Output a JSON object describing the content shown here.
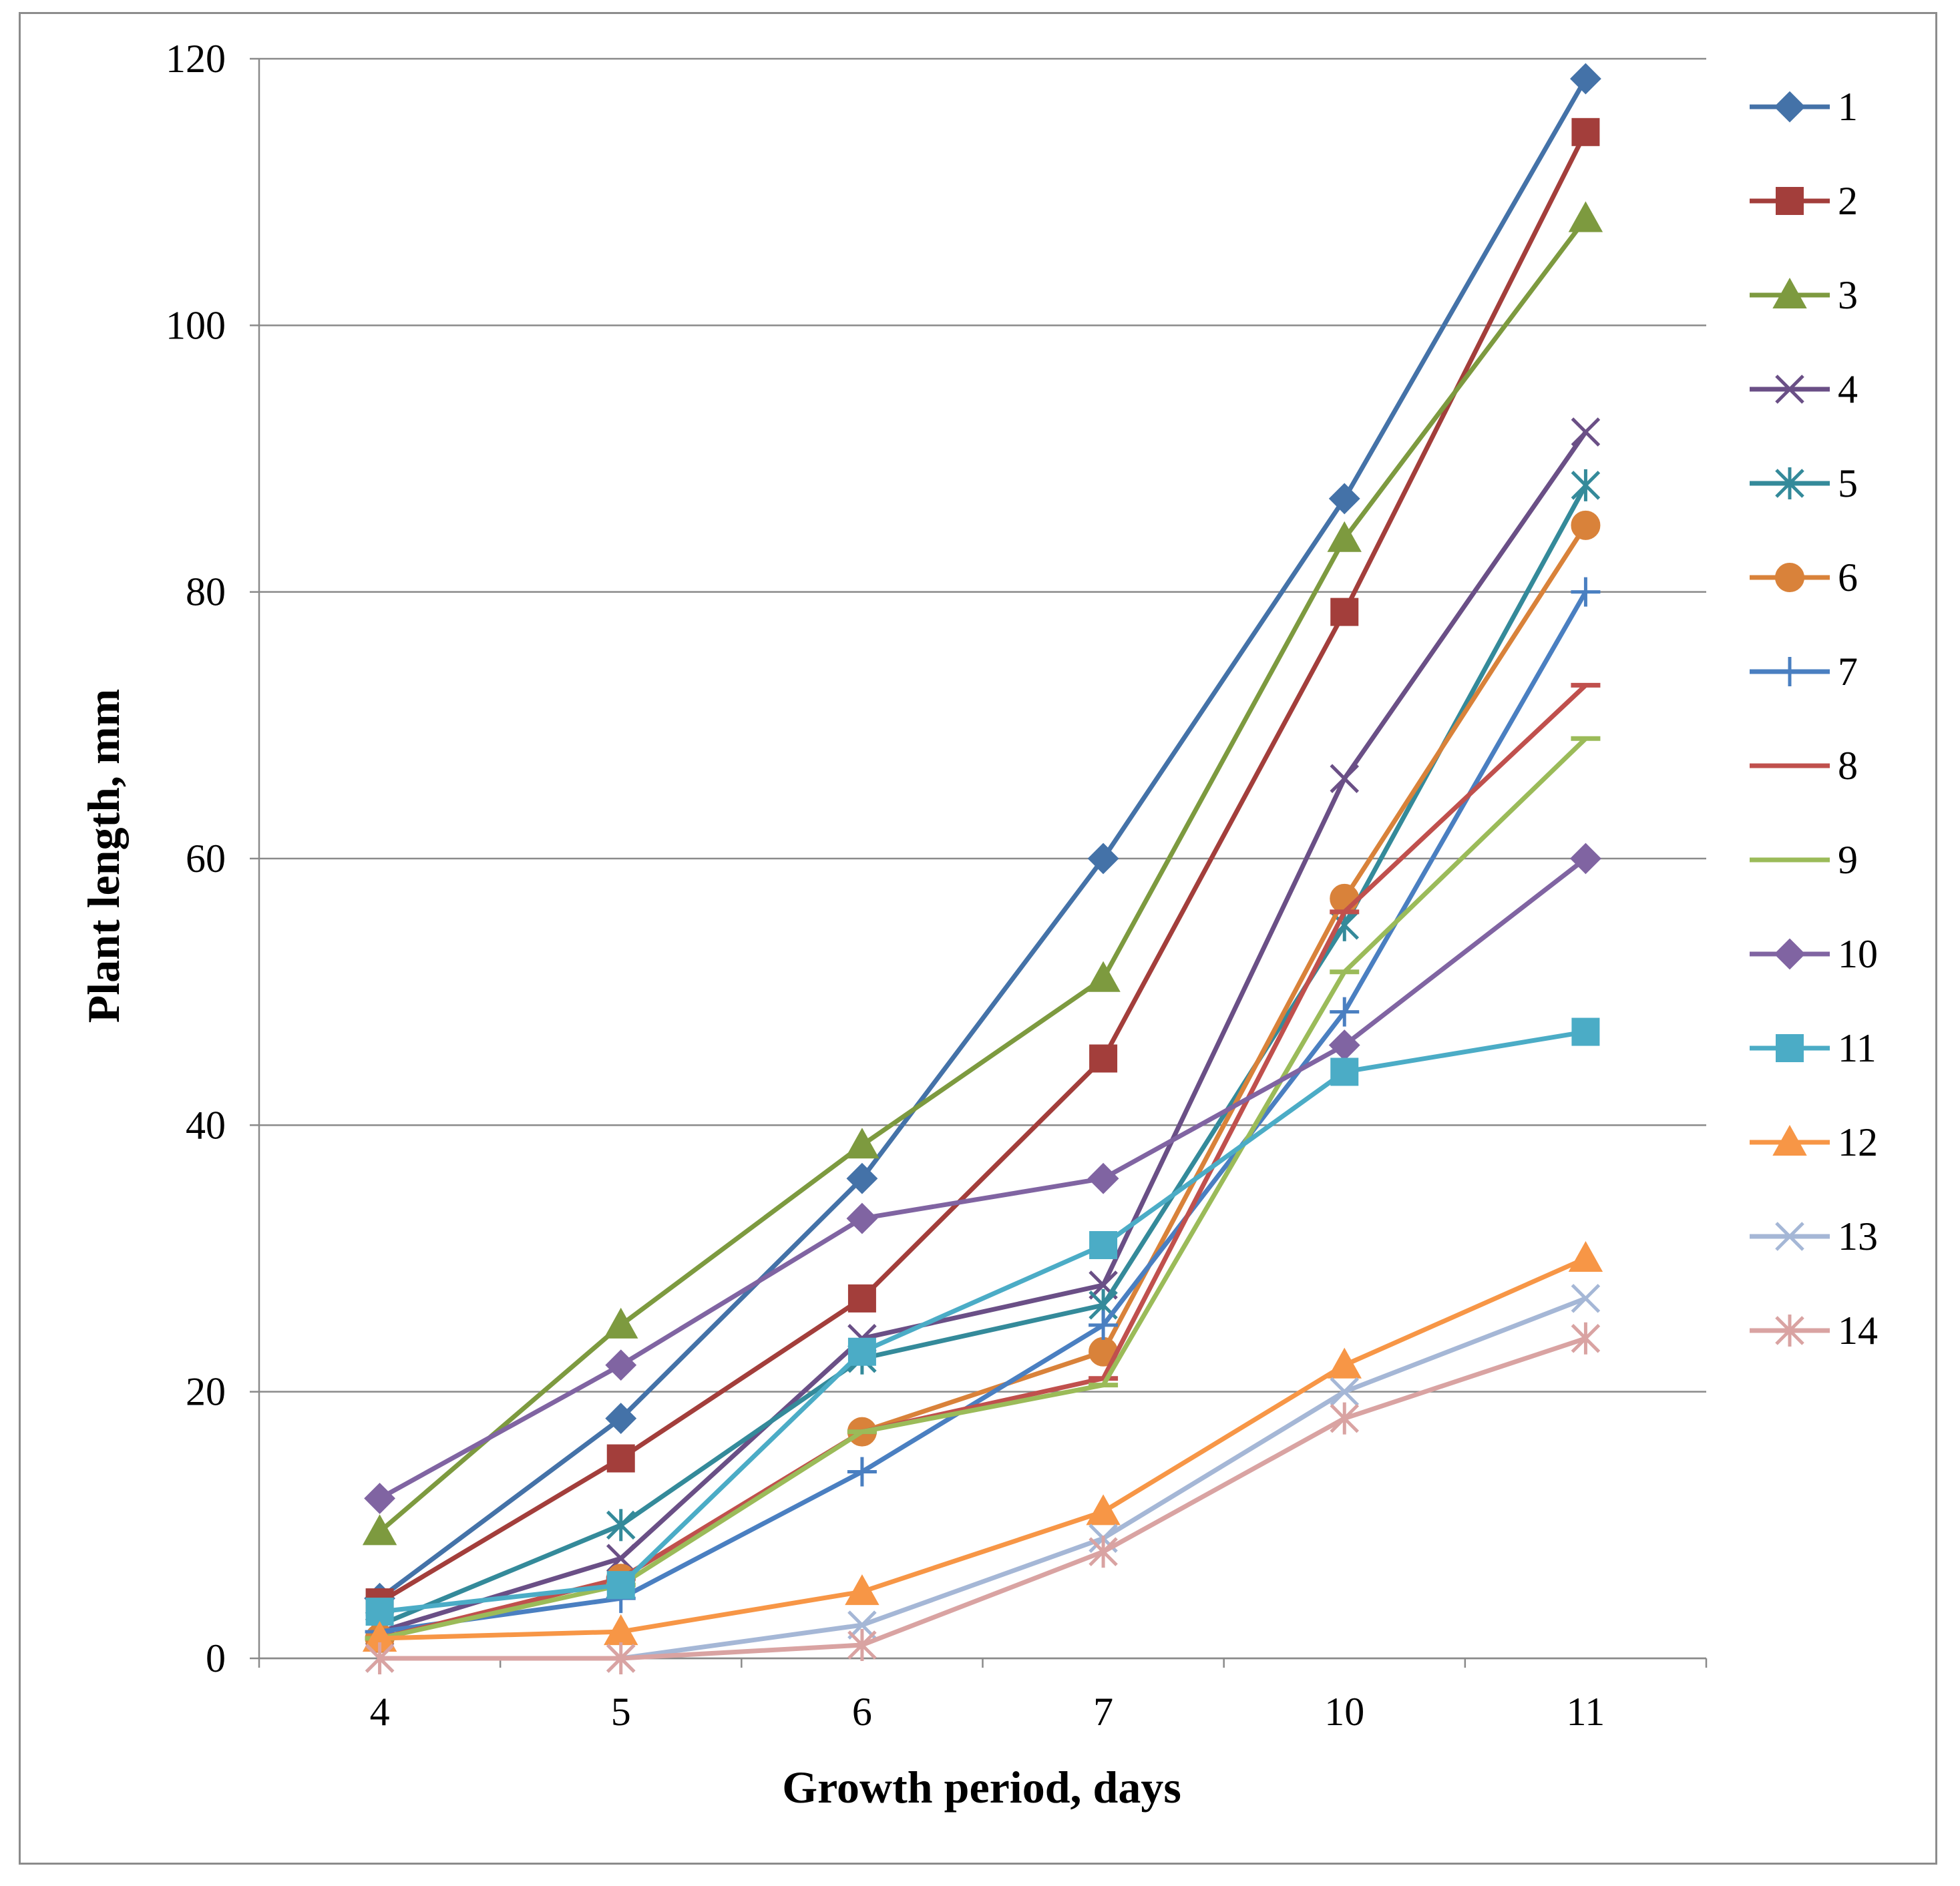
{
  "chart_data": {
    "type": "line",
    "title": "",
    "xlabel": "Growth period, days",
    "ylabel": "Plant length, mm",
    "categories": [
      "4",
      "5",
      "6",
      "7",
      "10",
      "11"
    ],
    "ylim": [
      0,
      120
    ],
    "yticks": [
      "0",
      "20",
      "40",
      "60",
      "80",
      "100",
      "120"
    ],
    "grid": "horizontal",
    "legend_position": "right",
    "series": [
      {
        "name": "1",
        "color": "#4472a8",
        "marker": "diamond",
        "values": [
          4.5,
          18,
          36,
          60,
          87,
          118.5
        ]
      },
      {
        "name": "2",
        "color": "#a33e3b",
        "marker": "square",
        "values": [
          4.2,
          15,
          27,
          45,
          78.5,
          114.5
        ]
      },
      {
        "name": "3",
        "color": "#7d9a3f",
        "marker": "triangle",
        "values": [
          9.5,
          25,
          38.5,
          51,
          84,
          108
        ]
      },
      {
        "name": "4",
        "color": "#6a4f86",
        "marker": "x",
        "values": [
          2,
          7.5,
          24,
          28,
          66,
          92
        ]
      },
      {
        "name": "5",
        "color": "#348a9a",
        "marker": "star",
        "values": [
          2.5,
          10,
          22.5,
          26.5,
          55,
          88
        ]
      },
      {
        "name": "6",
        "color": "#d9823a",
        "marker": "circle",
        "values": [
          1.5,
          6,
          17,
          23,
          57,
          85
        ]
      },
      {
        "name": "7",
        "color": "#4a7fc1",
        "marker": "plus",
        "values": [
          2,
          4.5,
          14,
          25,
          48.5,
          80
        ]
      },
      {
        "name": "8",
        "color": "#c0504d",
        "marker": "dash",
        "values": [
          1.5,
          6,
          17,
          21,
          56,
          73
        ]
      },
      {
        "name": "9",
        "color": "#9bbb59",
        "marker": "dash",
        "values": [
          1.5,
          5.5,
          17,
          20.5,
          51.5,
          69
        ]
      },
      {
        "name": "10",
        "color": "#8064a2",
        "marker": "diamond",
        "values": [
          12,
          22,
          33,
          36,
          46,
          60
        ]
      },
      {
        "name": "11",
        "color": "#4bacc6",
        "marker": "square",
        "values": [
          3.5,
          5.5,
          23,
          31,
          44,
          47
        ]
      },
      {
        "name": "12",
        "color": "#f79646",
        "marker": "triangle",
        "values": [
          1.5,
          2,
          5,
          11,
          22,
          30
        ]
      },
      {
        "name": "13",
        "color": "#a5b7d6",
        "marker": "x",
        "values": [
          0,
          0,
          2.5,
          9,
          20,
          27
        ]
      },
      {
        "name": "14",
        "color": "#d9a3a2",
        "marker": "star",
        "values": [
          0,
          0,
          1,
          8,
          18,
          24
        ]
      }
    ]
  }
}
